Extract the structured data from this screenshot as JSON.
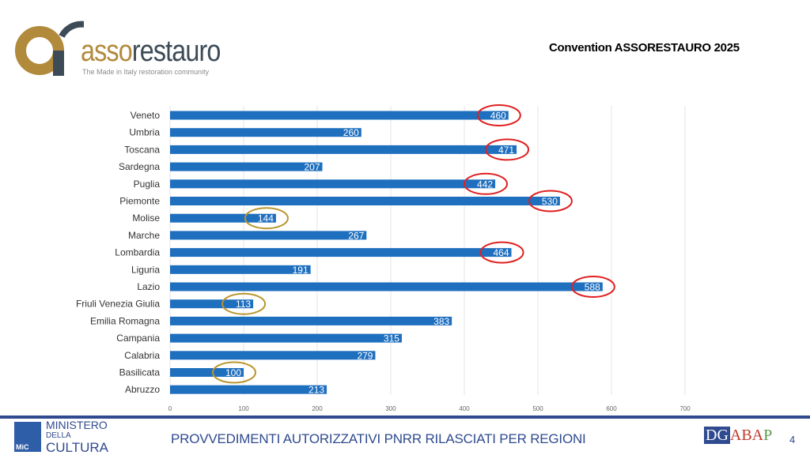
{
  "header": {
    "brand_part1": "asso",
    "brand_part2": "restauro",
    "tagline": "The Made in Italy restoration community",
    "convention": "Convention ASSORESTAURO 2025"
  },
  "footer": {
    "ministry": [
      "MINISTERO",
      "DELLA",
      "CULTURA"
    ],
    "mic": "MiC",
    "title": "PROVVEDIMENTI AUTORIZZATIVI PNRR RILASCIATI PER REGIONI",
    "dg": "DG",
    "abap_a": "ABA",
    "abap_p": "P",
    "page": "4"
  },
  "colors": {
    "bar": "#1f6fbf",
    "high": "#e02020",
    "low": "#b8962e"
  },
  "chart_data": {
    "type": "bar",
    "orientation": "horizontal",
    "title": "PROVVEDIMENTI AUTORIZZATIVI PNRR RILASCIATI PER REGIONI",
    "categories": [
      "Veneto",
      "Umbria",
      "Toscana",
      "Sardegna",
      "Puglia",
      "Piemonte",
      "Molise",
      "Marche",
      "Lombardia",
      "Liguria",
      "Lazio",
      "Friuli Venezia Giulia",
      "Emilia Romagna",
      "Campania",
      "Calabria",
      "Basilicata",
      "Abruzzo"
    ],
    "values": [
      460,
      260,
      471,
      207,
      442,
      530,
      144,
      267,
      464,
      191,
      588,
      113,
      383,
      315,
      279,
      100,
      213
    ],
    "highlight": [
      "high",
      "",
      "high",
      "",
      "high",
      "high",
      "low",
      "",
      "high",
      "",
      "high",
      "low",
      "",
      "",
      "",
      "low",
      ""
    ],
    "xlim": [
      0,
      700
    ],
    "ticks": [
      0,
      100,
      200,
      300,
      400,
      500,
      600,
      700
    ],
    "grid": true
  }
}
